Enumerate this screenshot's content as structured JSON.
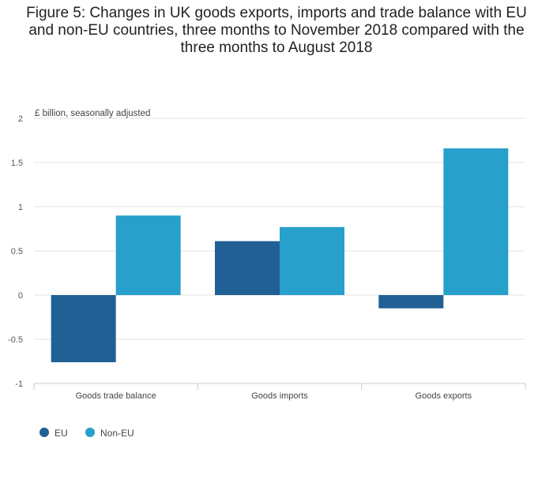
{
  "chart_data": {
    "type": "bar",
    "title": "Figure 5: Changes in UK goods exports, imports and trade balance with EU and non-EU countries, three months to November 2018 compared with the three months to August 2018",
    "unit_label": "£ billion, seasonally adjusted",
    "categories": [
      "Goods trade balance",
      "Goods imports",
      "Goods exports"
    ],
    "series": [
      {
        "name": "EU",
        "color": "#206095",
        "values": [
          -0.76,
          0.61,
          -0.15
        ]
      },
      {
        "name": "Non-EU",
        "color": "#27a0cc",
        "values": [
          0.9,
          0.77,
          1.66
        ]
      }
    ],
    "ylim": [
      -1,
      2
    ],
    "yticks": [
      2,
      1.5,
      1,
      0.5,
      0,
      -0.5,
      -1
    ],
    "ytick_labels": [
      "2",
      "1.5",
      "1",
      "0.5",
      "0",
      "-0.5",
      "-1"
    ],
    "grid": true,
    "legend_position": "bottom-left"
  }
}
